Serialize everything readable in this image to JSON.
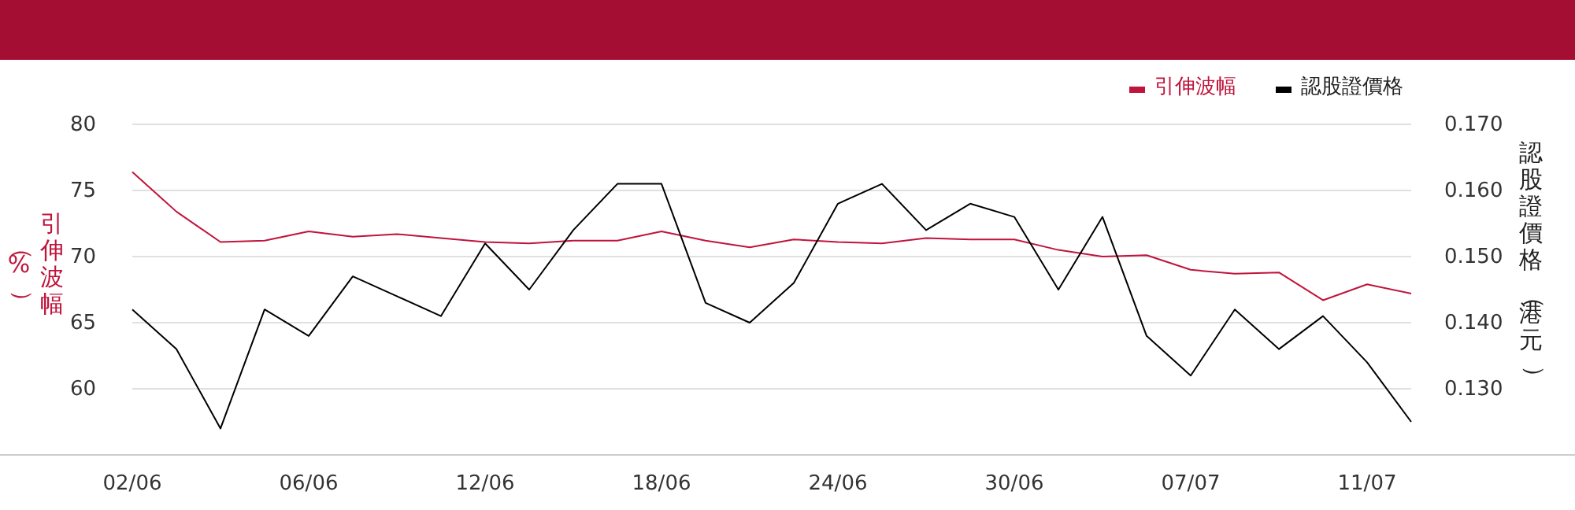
{
  "chart_data": {
    "type": "line",
    "categories": [
      "02/06",
      null,
      null,
      null,
      "06/06",
      null,
      null,
      null,
      "12/06",
      null,
      null,
      null,
      "18/06",
      null,
      null,
      null,
      "24/06",
      null,
      null,
      null,
      "30/06",
      null,
      null,
      null,
      "07/07",
      null,
      null,
      null,
      "11/07",
      null
    ],
    "series": [
      {
        "name": "引伸波幅",
        "color": "#c0143c",
        "values": [
          76.4,
          73.4,
          71.1,
          71.2,
          71.9,
          71.5,
          71.7,
          71.4,
          71.1,
          71.0,
          71.2,
          71.2,
          71.9,
          71.2,
          70.7,
          71.3,
          71.1,
          71.0,
          71.4,
          71.3,
          71.3,
          70.5,
          70.0,
          70.1,
          69.0,
          68.7,
          68.8,
          66.7,
          67.9,
          67.2
        ]
      },
      {
        "name": "認股證價格",
        "color": "#000000",
        "axis": "y2",
        "values": [
          0.142,
          0.136,
          0.124,
          0.142,
          0.138,
          0.147,
          0.144,
          0.141,
          0.152,
          0.145,
          0.154,
          0.161,
          0.161,
          0.143,
          0.14,
          0.146,
          0.158,
          0.161,
          0.154,
          0.158,
          0.156,
          0.145,
          0.156,
          0.138,
          0.132,
          0.142,
          0.136,
          0.141,
          0.134,
          0.125
        ]
      }
    ],
    "ylabel": "引伸波幅（%）",
    "y2label": "認股證價格（港元）",
    "ylim": [
      55,
      80
    ],
    "yticks": [
      60,
      65,
      70,
      75,
      80
    ],
    "y2lim": [
      0.12,
      0.17
    ],
    "y2ticks": [
      {
        "value": 0.13,
        "label": "0.130"
      },
      {
        "value": 0.14,
        "label": "0.140"
      },
      {
        "value": 0.15,
        "label": "0.150"
      },
      {
        "value": 0.16,
        "label": "0.160"
      },
      {
        "value": 0.17,
        "label": "0.170"
      }
    ],
    "grid": "y",
    "legend": "top right",
    "marker": "none",
    "line_style": "solid"
  }
}
